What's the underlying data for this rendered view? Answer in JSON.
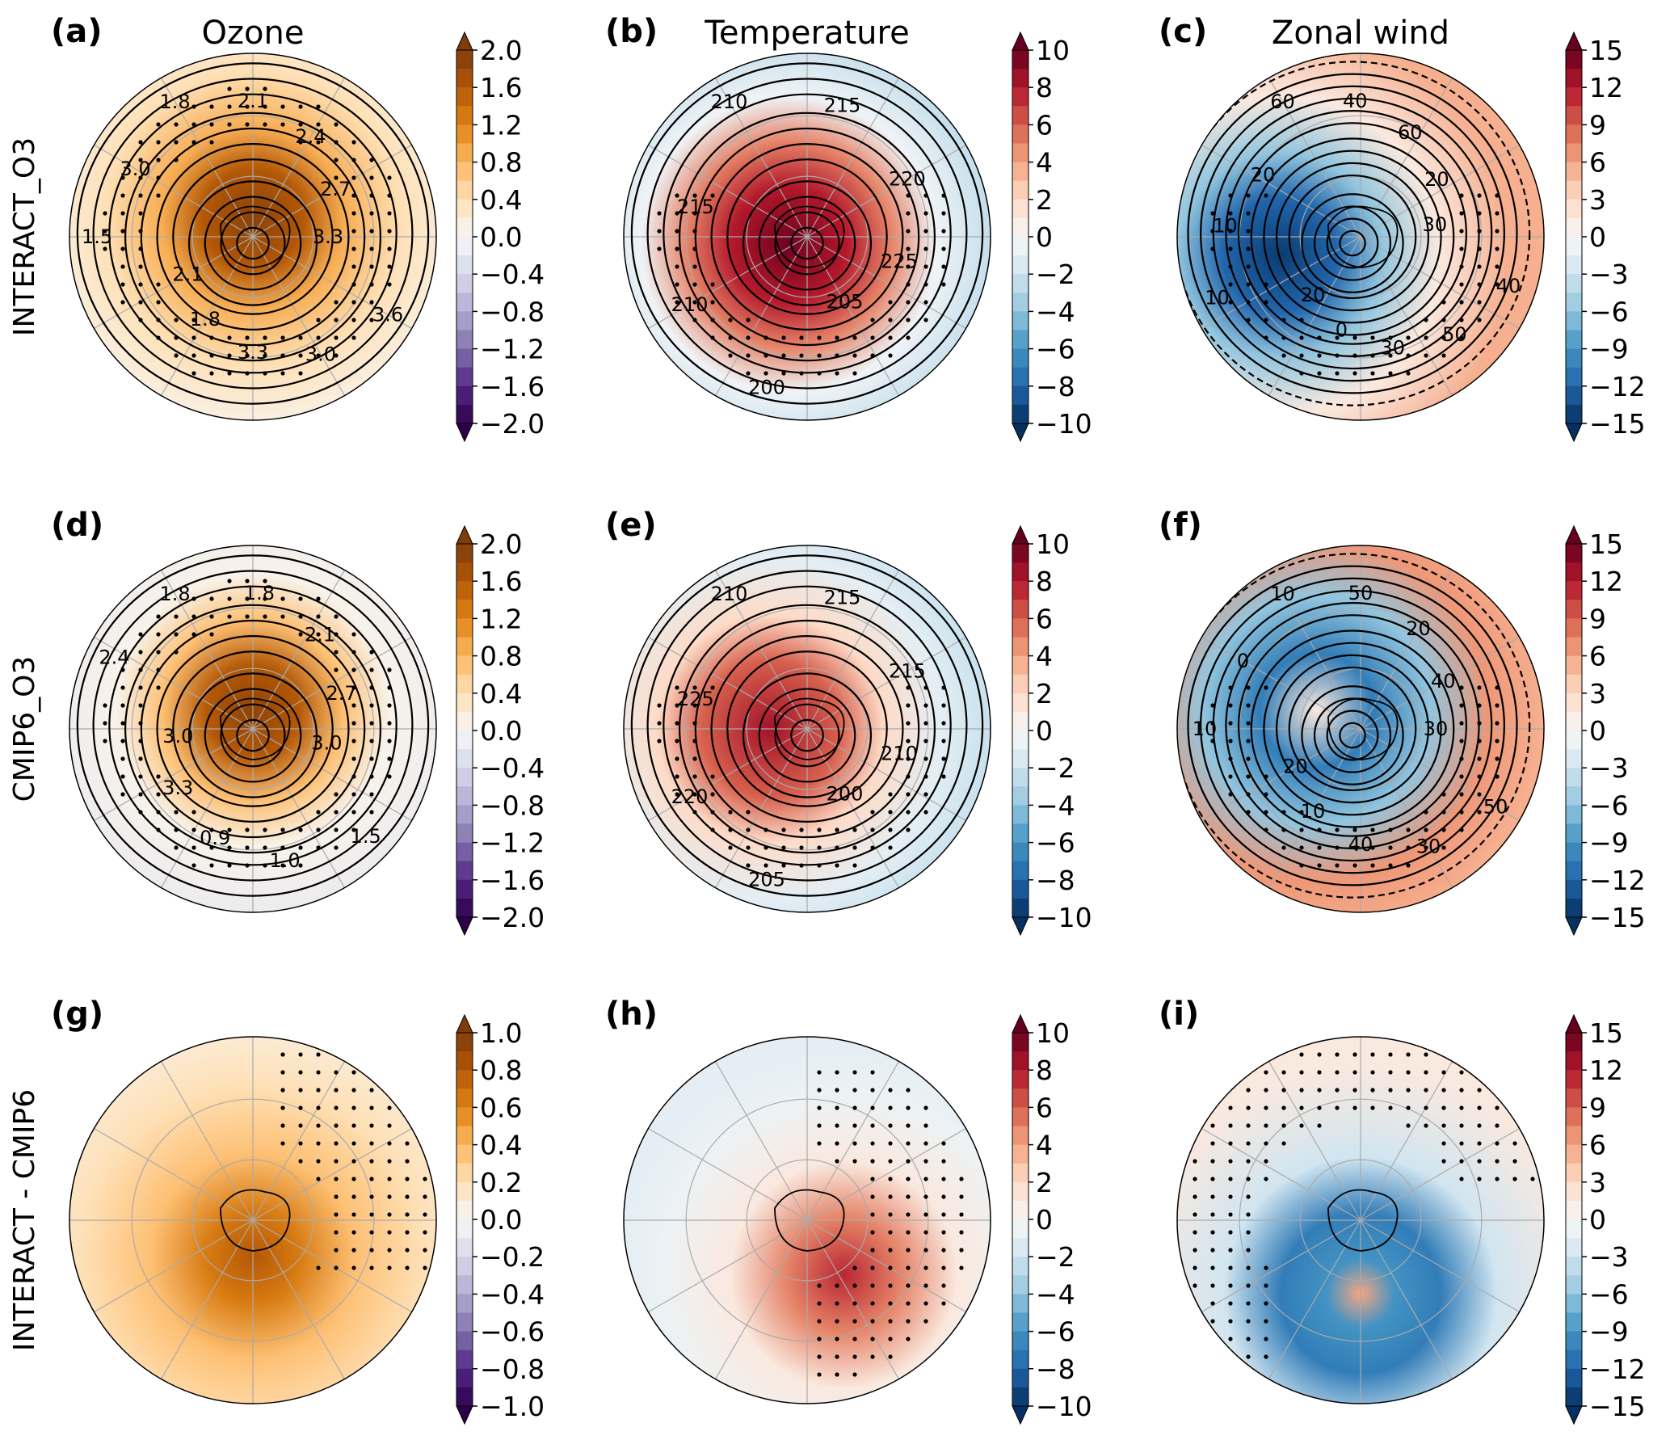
{
  "chart_data": {
    "type": "heatmap",
    "projection": "south polar stereographic",
    "column_titles": [
      "Ozone",
      "Temperature",
      "Zonal wind"
    ],
    "row_labels": [
      "INTERACT_O3",
      "CMIP6_O3",
      "INTERACT - CMIP6"
    ],
    "panels": [
      {
        "label": "(a)",
        "row": 0,
        "col": 0,
        "variable": "Ozone",
        "colormap": "PuOr_r",
        "colorbar_ticks": [
          "2.0",
          "1.6",
          "1.2",
          "0.8",
          "0.4",
          "0.0",
          "−0.4",
          "−0.8",
          "−1.2",
          "−1.6",
          "−2.0"
        ],
        "range": [
          -2.0,
          2.0
        ],
        "contour_labels": [
          "1.8",
          "2.1",
          "2.4",
          "2.7",
          "3.3",
          "3.6",
          "3.0",
          "3.3",
          "1.8",
          "2.1",
          "1.5",
          "3.0"
        ]
      },
      {
        "label": "(b)",
        "row": 0,
        "col": 1,
        "variable": "Temperature",
        "colormap": "RdBu_r",
        "colorbar_ticks": [
          "10",
          "8",
          "6",
          "4",
          "2",
          "0",
          "−2",
          "−4",
          "−6",
          "−8",
          "−10"
        ],
        "range": [
          -10,
          10
        ],
        "contour_labels": [
          "210",
          "215",
          "220",
          "225",
          "205",
          "200",
          "210",
          "215"
        ]
      },
      {
        "label": "(c)",
        "row": 0,
        "col": 2,
        "variable": "Zonal wind",
        "colormap": "RdBu_r",
        "colorbar_ticks": [
          "15",
          "12",
          "9",
          "6",
          "3",
          "0",
          "−3",
          "−6",
          "−9",
          "−12",
          "−15"
        ],
        "range": [
          -15,
          15
        ],
        "contour_labels": [
          "60",
          "40",
          "60",
          "20",
          "30",
          "40",
          "50",
          "30",
          "0",
          "20",
          "10",
          "10",
          "20"
        ]
      },
      {
        "label": "(d)",
        "row": 1,
        "col": 0,
        "variable": "Ozone",
        "colormap": "PuOr_r",
        "colorbar_ticks": [
          "2.0",
          "1.6",
          "1.2",
          "0.8",
          "0.4",
          "0.0",
          "−0.4",
          "−0.8",
          "−1.2",
          "−1.6",
          "−2.0"
        ],
        "range": [
          -2.0,
          2.0
        ],
        "contour_labels": [
          "1.8",
          "1.8",
          "2.1",
          "2.7",
          "3.0",
          "1.5",
          "1.0",
          "0.9",
          "3.3",
          "3.0",
          "2.4"
        ]
      },
      {
        "label": "(e)",
        "row": 1,
        "col": 1,
        "variable": "Temperature",
        "colormap": "RdBu_r",
        "colorbar_ticks": [
          "10",
          "8",
          "6",
          "4",
          "2",
          "0",
          "−2",
          "−4",
          "−6",
          "−8",
          "−10"
        ],
        "range": [
          -10,
          10
        ],
        "contour_labels": [
          "210",
          "215",
          "215",
          "210",
          "200",
          "205",
          "220",
          "225"
        ]
      },
      {
        "label": "(f)",
        "row": 1,
        "col": 2,
        "variable": "Zonal wind",
        "colormap": "RdBu_r",
        "colorbar_ticks": [
          "15",
          "12",
          "9",
          "6",
          "3",
          "0",
          "−3",
          "−6",
          "−9",
          "−12",
          "−15"
        ],
        "range": [
          -15,
          15
        ],
        "contour_labels": [
          "10",
          "50",
          "20",
          "40",
          "30",
          "50",
          "30",
          "40",
          "10",
          "20",
          "10",
          "0"
        ]
      },
      {
        "label": "(g)",
        "row": 2,
        "col": 0,
        "variable": "Ozone",
        "colormap": "PuOr_r",
        "colorbar_ticks": [
          "1.0",
          "0.8",
          "0.6",
          "0.4",
          "0.2",
          "0.0",
          "−0.2",
          "−0.4",
          "−0.6",
          "−0.8",
          "−1.0"
        ],
        "range": [
          -1.0,
          1.0
        ],
        "contour_labels": []
      },
      {
        "label": "(h)",
        "row": 2,
        "col": 1,
        "variable": "Temperature",
        "colormap": "RdBu_r",
        "colorbar_ticks": [
          "10",
          "8",
          "6",
          "4",
          "2",
          "0",
          "−2",
          "−4",
          "−6",
          "−8",
          "−10"
        ],
        "range": [
          -10,
          10
        ],
        "contour_labels": []
      },
      {
        "label": "(i)",
        "row": 2,
        "col": 2,
        "variable": "Zonal wind",
        "colormap": "RdBu_r",
        "colorbar_ticks": [
          "15",
          "12",
          "9",
          "6",
          "3",
          "0",
          "−3",
          "−6",
          "−9",
          "−12",
          "−15"
        ],
        "range": [
          -15,
          15
        ],
        "contour_labels": []
      }
    ]
  },
  "colors": {
    "puor_top": "#7f3b08",
    "puor_mid": "#f7f7f7",
    "puor_bottom": "#2d004b",
    "rdbu_top": "#67001f",
    "rdbu_mid": "#f7f7f7",
    "rdbu_bottom": "#053061"
  }
}
